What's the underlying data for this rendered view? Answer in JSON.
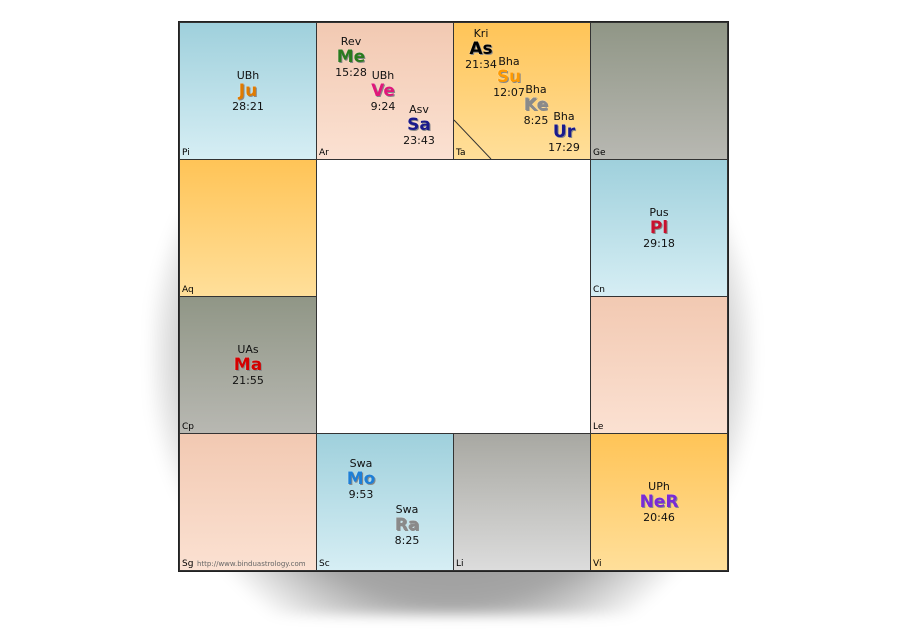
{
  "footer_url": "http://www.binduastrology.com",
  "houses": [
    {
      "id": "pi",
      "sign": "Pi",
      "planets": [
        {
          "nak": "UBh",
          "glyph": "Ju",
          "deg": "28:21",
          "color": "#e07b00"
        }
      ]
    },
    {
      "id": "ar",
      "sign": "Ar",
      "planets": [
        {
          "nak": "Rev",
          "glyph": "Me",
          "deg": "15:28",
          "color": "#2a7a1e"
        },
        {
          "nak": "UBh",
          "glyph": "Ve",
          "deg": "9:24",
          "color": "#e0187a"
        },
        {
          "nak": "Asv",
          "glyph": "Sa",
          "deg": "23:43",
          "color": "#1a1a8c"
        }
      ]
    },
    {
      "id": "ta",
      "sign": "Ta",
      "planets": [
        {
          "nak": "Kri",
          "glyph": "As",
          "deg": "21:34",
          "color": "#000000"
        },
        {
          "nak": "Bha",
          "glyph": "Su",
          "deg": "12:07",
          "color": "#ff9a00"
        },
        {
          "nak": "Bha",
          "glyph": "Ke",
          "deg": "8:25",
          "color": "#8a8a8a"
        },
        {
          "nak": "Bha",
          "glyph": "Ur",
          "deg": "17:29",
          "color": "#1a1a8c"
        }
      ]
    },
    {
      "id": "ge",
      "sign": "Ge",
      "planets": []
    },
    {
      "id": "cn",
      "sign": "Cn",
      "planets": [
        {
          "nak": "Pus",
          "glyph": "Pl",
          "deg": "29:18",
          "color": "#c8102e"
        }
      ]
    },
    {
      "id": "le",
      "sign": "Le",
      "planets": []
    },
    {
      "id": "vi",
      "sign": "Vi",
      "planets": [
        {
          "nak": "UPh",
          "glyph": "NeR",
          "deg": "20:46",
          "color": "#7a2ad6"
        }
      ]
    },
    {
      "id": "li",
      "sign": "Li",
      "planets": []
    },
    {
      "id": "sc",
      "sign": "Sc",
      "planets": [
        {
          "nak": "Swa",
          "glyph": "Mo",
          "deg": "9:53",
          "color": "#1e7fd6"
        },
        {
          "nak": "Swa",
          "glyph": "Ra",
          "deg": "8:25",
          "color": "#8a8a8a"
        }
      ]
    },
    {
      "id": "sg",
      "sign": "Sg",
      "planets": []
    },
    {
      "id": "cp",
      "sign": "Cp",
      "planets": [
        {
          "nak": "UAs",
          "glyph": "Ma",
          "deg": "21:55",
          "color": "#d40000"
        }
      ]
    },
    {
      "id": "aq",
      "sign": "Aq",
      "planets": []
    }
  ]
}
